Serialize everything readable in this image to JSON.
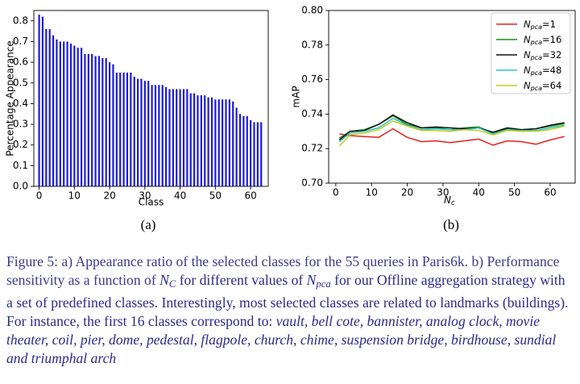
{
  "chart_data": [
    {
      "type": "bar",
      "panel_label": "(a)",
      "xlabel": "Class",
      "ylabel": "Percentage Appearance",
      "xlim": [
        -1.5,
        65
      ],
      "ylim": [
        0,
        0.85
      ],
      "xticks": [
        0,
        10,
        20,
        30,
        40,
        50,
        60
      ],
      "yticks": [
        0.0,
        0.1,
        0.2,
        0.3,
        0.4,
        0.5,
        0.6,
        0.7,
        0.8
      ],
      "ytick_labels": [
        "0.0",
        "0.1",
        "0.2",
        "0.3",
        "0.4",
        "0.5",
        "0.6",
        "0.7",
        "0.8"
      ],
      "color": "#1c1cd6",
      "x": [
        0,
        1,
        2,
        3,
        4,
        5,
        6,
        7,
        8,
        9,
        10,
        11,
        12,
        13,
        14,
        15,
        16,
        17,
        18,
        19,
        20,
        21,
        22,
        23,
        24,
        25,
        26,
        27,
        28,
        29,
        30,
        31,
        32,
        33,
        34,
        35,
        36,
        37,
        38,
        39,
        40,
        41,
        42,
        43,
        44,
        45,
        46,
        47,
        48,
        49,
        50,
        51,
        52,
        53,
        54,
        55,
        56,
        57,
        58,
        59,
        60,
        61,
        62,
        63
      ],
      "values": [
        0.83,
        0.82,
        0.76,
        0.76,
        0.73,
        0.71,
        0.7,
        0.7,
        0.7,
        0.69,
        0.68,
        0.67,
        0.67,
        0.64,
        0.64,
        0.64,
        0.63,
        0.63,
        0.62,
        0.62,
        0.6,
        0.59,
        0.55,
        0.55,
        0.55,
        0.55,
        0.55,
        0.53,
        0.52,
        0.52,
        0.51,
        0.51,
        0.49,
        0.49,
        0.49,
        0.49,
        0.48,
        0.47,
        0.47,
        0.47,
        0.47,
        0.47,
        0.47,
        0.45,
        0.45,
        0.44,
        0.44,
        0.44,
        0.43,
        0.43,
        0.42,
        0.42,
        0.42,
        0.42,
        0.42,
        0.41,
        0.38,
        0.35,
        0.34,
        0.34,
        0.32,
        0.31,
        0.31,
        0.31
      ]
    },
    {
      "type": "line",
      "panel_label": "(b)",
      "xlabel": "N",
      "xlabel_sub": "c",
      "ylabel": "mAP",
      "xlim": [
        -2,
        67
      ],
      "ylim": [
        0.7,
        0.8
      ],
      "xticks": [
        0,
        10,
        20,
        30,
        40,
        50,
        60
      ],
      "yticks": [
        0.7,
        0.72,
        0.74,
        0.76,
        0.78,
        0.8
      ],
      "ytick_labels": [
        "0.70",
        "0.72",
        "0.74",
        "0.76",
        "0.78",
        "0.80"
      ],
      "legend_position": "top-right",
      "x": [
        1,
        4,
        8,
        12,
        16,
        20,
        24,
        28,
        32,
        36,
        40,
        44,
        48,
        52,
        56,
        60,
        64
      ],
      "series": [
        {
          "name_base": "N",
          "name_sub": "pca",
          "name_value": "=1",
          "color": "#e8211c",
          "values": [
            0.7285,
            0.7275,
            0.727,
            0.7265,
            0.7315,
            0.7265,
            0.724,
            0.7245,
            0.7235,
            0.7245,
            0.7255,
            0.722,
            0.7245,
            0.724,
            0.7225,
            0.725,
            0.727
          ]
        },
        {
          "name_base": "N",
          "name_sub": "pca",
          "name_value": "=16",
          "color": "#1f8c1f",
          "values": [
            0.726,
            0.73,
            0.731,
            0.734,
            0.739,
            0.734,
            0.732,
            0.732,
            0.731,
            0.732,
            0.7325,
            0.729,
            0.7315,
            0.731,
            0.7315,
            0.733,
            0.7345
          ]
        },
        {
          "name_base": "N",
          "name_sub": "pca",
          "name_value": "=32",
          "color": "#111111",
          "values": [
            0.725,
            0.73,
            0.7305,
            0.734,
            0.7395,
            0.735,
            0.732,
            0.7325,
            0.732,
            0.7315,
            0.732,
            0.7295,
            0.732,
            0.731,
            0.7315,
            0.7335,
            0.735
          ]
        },
        {
          "name_base": "N",
          "name_sub": "pca",
          "name_value": "=48",
          "color": "#22c7c0",
          "values": [
            0.724,
            0.729,
            0.73,
            0.732,
            0.7375,
            0.7335,
            0.731,
            0.7315,
            0.731,
            0.731,
            0.732,
            0.7285,
            0.731,
            0.7305,
            0.7305,
            0.732,
            0.7335
          ]
        },
        {
          "name_base": "N",
          "name_sub": "pca",
          "name_value": "=64",
          "color": "#c8c81e",
          "values": [
            0.7215,
            0.728,
            0.729,
            0.731,
            0.736,
            0.733,
            0.7305,
            0.7305,
            0.73,
            0.731,
            0.7305,
            0.728,
            0.7305,
            0.73,
            0.73,
            0.731,
            0.733
          ]
        }
      ]
    }
  ],
  "caption": {
    "lead": "Figure 5: a) Appearance ratio of the selected classes for the 55 queries in Paris6k. b) Performance sensitivity as a function of",
    "nc_base": "N",
    "nc_sub": "C",
    "mid": "for different values of",
    "npca_base": "N",
    "npca_sub": "pca",
    "rest": "for our Offline aggregation strategy with a set of predefined classes. Interestingly, most selected classes are related to landmarks (buildings). For instance, the first 16 classes correspond to:",
    "classes": "vault, bell cote, bannister, analog clock, movie theater, coil, pier, dome, pedestal, flagpole, church, chime, suspension bridge, birdhouse, sundial and triumphal arch"
  }
}
